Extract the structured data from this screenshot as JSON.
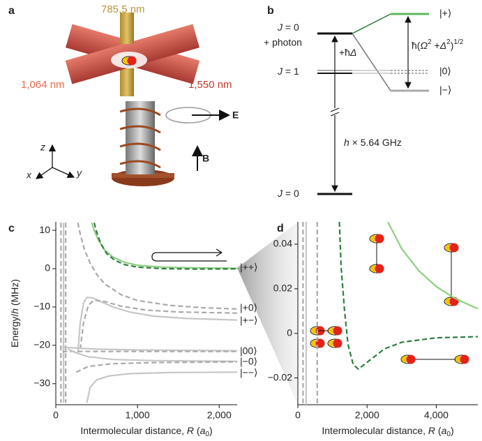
{
  "panel_a": {
    "label": "a",
    "wavelength_top": "785.5 nm",
    "wavelength_left": "1,064 nm",
    "wavelength_right": "1,550 nm",
    "field_e": "E",
    "field_b": "B",
    "axis_z": "z",
    "axis_x": "x",
    "axis_y": "y"
  },
  "panel_b": {
    "label": "b",
    "upper_level": [
      "J",
      " = 0"
    ],
    "photon": "+ photon",
    "middle_level": [
      "J",
      " = 1"
    ],
    "ground_level": [
      "J",
      " = 0"
    ],
    "detuning": [
      "+ħ",
      "Δ"
    ],
    "splitting": [
      "ħ(",
      "Ω",
      "2",
      " +",
      "Δ",
      "2",
      ")",
      "1/2"
    ],
    "state_plus": "|+⟩",
    "state_zero": "|0⟩",
    "state_minus": "|−⟩",
    "gap": [
      "h",
      " × 5.64 GHz"
    ]
  },
  "chart_data": [
    {
      "type": "line",
      "panel_label": "c",
      "xlabel": [
        "Intermolecular distance, ",
        "R",
        " (",
        "a",
        "0",
        ")"
      ],
      "ylabel": [
        "Energy/",
        "h",
        " (MHz)"
      ],
      "xlim": [
        0,
        2220
      ],
      "ylim": [
        -35.5,
        12.2
      ],
      "xticks": [
        0,
        {
          "value": 1000,
          "label": "1,000"
        },
        {
          "value": 2000,
          "label": "2,000"
        }
      ],
      "yticks": [
        10,
        0,
        {
          "value": -10,
          "label": "−10"
        },
        {
          "value": -20,
          "label": "−20"
        },
        {
          "value": -30,
          "label": "−30"
        }
      ],
      "state_labels": [
        "|++⟩",
        "|+0⟩",
        "|+−⟩",
        "|00⟩",
        "|−0⟩",
        "|−−⟩"
      ],
      "series": [
        {
          "color": "#a9a9a9",
          "dashed": true,
          "x": [
            62,
            62
          ],
          "values": [
            12,
            -35
          ]
        },
        {
          "color": "#c6c6c6",
          "dashed": false,
          "x": [
            95,
            95
          ],
          "values": [
            12,
            -35
          ]
        },
        {
          "color": "#a9a9a9",
          "dashed": true,
          "x": [
            120,
            120
          ],
          "values": [
            12,
            -35
          ]
        },
        {
          "color": "#a9a9a9",
          "dashed": true,
          "x": [
            270,
            300,
            350,
            420,
            500,
            600,
            800,
            1000,
            1400,
            1800,
            2220
          ],
          "values": [
            12,
            9,
            5,
            1.5,
            -1.5,
            -4,
            -6.8,
            -8.3,
            -9.6,
            -10.2,
            -10.5
          ]
        },
        {
          "color": "#c6c6c6",
          "dashed": false,
          "x": [
            270,
            300,
            340,
            380,
            450,
            550,
            700,
            900,
            1200,
            1600,
            2220
          ],
          "values": [
            -22,
            -14,
            -9,
            -7.5,
            -7.6,
            -8.6,
            -10,
            -11.3,
            -12.4,
            -13,
            -13.4
          ]
        },
        {
          "color": "#a9a9a9",
          "dashed": true,
          "x": [
            300,
            340,
            400,
            470,
            600,
            800,
            1100,
            1500,
            2220
          ],
          "values": [
            -21,
            -14,
            -9.5,
            -8.2,
            -8.6,
            -9.8,
            -10.8,
            -11.3,
            -11.6
          ]
        },
        {
          "color": "#c6c6c6",
          "dashed": false,
          "x": [
            80,
            500,
            1000,
            2220
          ],
          "values": [
            -20.5,
            -21,
            -21.2,
            -21.4
          ]
        },
        {
          "color": "#a9a9a9",
          "dashed": true,
          "x": [
            80,
            2220
          ],
          "values": [
            -21.6,
            -21.6
          ]
        },
        {
          "color": "#c6c6c6",
          "dashed": false,
          "x": [
            150,
            250,
            400,
            700,
            1200,
            2220
          ],
          "values": [
            -21,
            -22,
            -23,
            -23.7,
            -24,
            -24.2
          ]
        },
        {
          "color": "#a9a9a9",
          "dashed": true,
          "x": [
            250,
            400,
            700,
            1200,
            2220
          ],
          "values": [
            -27,
            -25.5,
            -24.8,
            -24.5,
            -24.3
          ]
        },
        {
          "color": "#c6c6c6",
          "dashed": false,
          "x": [
            380,
            420,
            500,
            650,
            900,
            1400,
            2220
          ],
          "values": [
            -35,
            -31,
            -29,
            -28,
            -27.4,
            -27.1,
            -27
          ]
        },
        {
          "color": "#8dcf80",
          "dashed": false,
          "x": [
            440,
            470,
            520,
            600,
            700,
            850,
            1000,
            1300,
            1700,
            2220
          ],
          "values": [
            12,
            10,
            7.5,
            4.8,
            3,
            1.6,
            0.9,
            0.4,
            0.2,
            0.1
          ]
        },
        {
          "color": "#2e7d3e",
          "dashed": true,
          "x": [
            470,
            500,
            550,
            620,
            720,
            850,
            1000,
            1300,
            1700,
            2220
          ],
          "values": [
            12,
            9.5,
            6.6,
            4,
            2.2,
            1,
            0.4,
            0,
            -0.1,
            -0.05
          ]
        }
      ]
    },
    {
      "type": "line",
      "panel_label": "d",
      "xlabel": [
        "Intermolecular distance, ",
        "R",
        " (",
        "a",
        "0",
        ")"
      ],
      "xlim": [
        0,
        5200
      ],
      "ylim": [
        -0.032,
        0.05
      ],
      "xticks": [
        0,
        {
          "value": 2000,
          "label": "2,000"
        },
        {
          "value": 4000,
          "label": "4,000"
        }
      ],
      "yticks": [
        {
          "value": -0.02,
          "label": "−0.02"
        },
        0,
        0.02,
        0.04
      ],
      "series": [
        {
          "color": "#a9a9a9",
          "dashed": true,
          "x": [
            150,
            150
          ],
          "values": [
            0.05,
            -0.032
          ]
        },
        {
          "color": "#c6c6c6",
          "dashed": false,
          "x": [
            240,
            240
          ],
          "values": [
            0.05,
            -0.032
          ]
        },
        {
          "color": "#a9a9a9",
          "dashed": true,
          "x": [
            560,
            560
          ],
          "values": [
            0.05,
            -0.032
          ]
        },
        {
          "color": "#8dcf80",
          "dashed": false,
          "x": [
            2600,
            3000,
            3500,
            4000,
            4500,
            5200
          ],
          "values": [
            0.05,
            0.038,
            0.028,
            0.021,
            0.016,
            0.011
          ]
        },
        {
          "color": "#2e7d3e",
          "dashed": true,
          "x": [
            1200,
            1250,
            1350,
            1450,
            1600,
            1750,
            2000,
            2500,
            3000,
            4000,
            5200
          ],
          "values": [
            0.05,
            0.03,
            0.01,
            -0.005,
            -0.014,
            -0.016,
            -0.013,
            -0.007,
            -0.004,
            -0.002,
            -0.0015
          ]
        }
      ]
    }
  ]
}
